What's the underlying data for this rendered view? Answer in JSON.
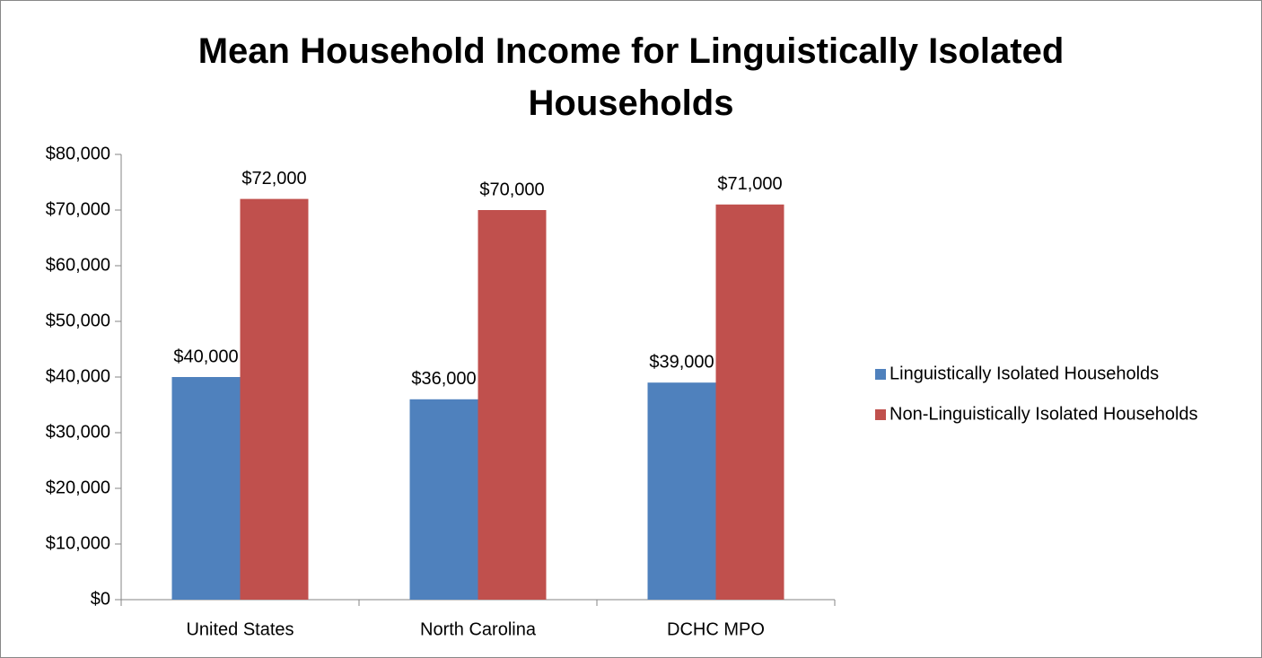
{
  "chart_data": {
    "type": "bar",
    "title": "Mean Household Income for Linguistically Isolated Households",
    "categories": [
      "United States",
      "North Carolina",
      "DCHC MPO"
    ],
    "series": [
      {
        "name": "Linguistically Isolated Households",
        "color": "#4f81bd",
        "values": [
          40000,
          36000,
          39000
        ],
        "value_labels": [
          "$40,000",
          "$36,000",
          "$39,000"
        ]
      },
      {
        "name": "Non-Linguistically Isolated Households",
        "color": "#c0504d",
        "values": [
          72000,
          70000,
          71000
        ],
        "value_labels": [
          "$72,000",
          "$70,000",
          "$71,000"
        ]
      }
    ],
    "ylim": [
      0,
      80000
    ],
    "yticks": [
      {
        "value": 0,
        "label": "$0"
      },
      {
        "value": 10000,
        "label": "$10,000"
      },
      {
        "value": 20000,
        "label": "$20,000"
      },
      {
        "value": 30000,
        "label": "$30,000"
      },
      {
        "value": 40000,
        "label": "$40,000"
      },
      {
        "value": 50000,
        "label": "$50,000"
      },
      {
        "value": 60000,
        "label": "$60,000"
      },
      {
        "value": 70000,
        "label": "$70,000"
      },
      {
        "value": 80000,
        "label": "$80,000"
      }
    ],
    "grid": false,
    "legend": "right"
  }
}
